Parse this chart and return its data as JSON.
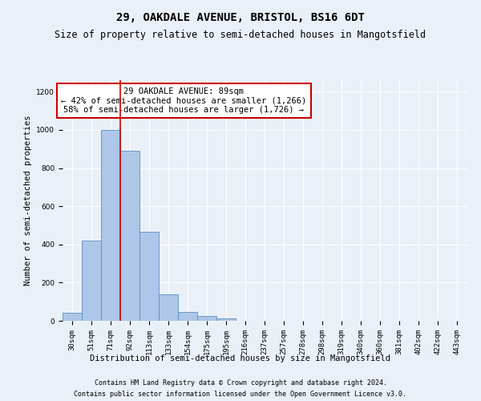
{
  "title": "29, OAKDALE AVENUE, BRISTOL, BS16 6DT",
  "subtitle": "Size of property relative to semi-detached houses in Mangotsfield",
  "xlabel": "Distribution of semi-detached houses by size in Mangotsfield",
  "ylabel": "Number of semi-detached properties",
  "bin_labels": [
    "30sqm",
    "51sqm",
    "71sqm",
    "92sqm",
    "113sqm",
    "133sqm",
    "154sqm",
    "175sqm",
    "195sqm",
    "216sqm",
    "237sqm",
    "257sqm",
    "278sqm",
    "298sqm",
    "319sqm",
    "340sqm",
    "360sqm",
    "381sqm",
    "402sqm",
    "422sqm",
    "443sqm"
  ],
  "bar_heights": [
    40,
    420,
    1000,
    890,
    465,
    140,
    45,
    25,
    12,
    0,
    0,
    0,
    0,
    0,
    0,
    0,
    0,
    0,
    0,
    0,
    0
  ],
  "bar_color": "#aec6e8",
  "bar_edge_color": "#5a8fc0",
  "red_line_x": 3.0,
  "annotation_text": "29 OAKDALE AVENUE: 89sqm\n← 42% of semi-detached houses are smaller (1,266)\n58% of semi-detached houses are larger (1,726) →",
  "annotation_box_color": "#ffffff",
  "annotation_box_edge_color": "#cc0000",
  "ylim": [
    0,
    1260
  ],
  "footnote1": "Contains HM Land Registry data © Crown copyright and database right 2024.",
  "footnote2": "Contains public sector information licensed under the Open Government Licence v3.0.",
  "background_color": "#eaf0f8",
  "grid_color": "#ffffff",
  "title_fontsize": 10,
  "subtitle_fontsize": 8.5,
  "axis_label_fontsize": 7.5,
  "tick_fontsize": 6.5,
  "annotation_fontsize": 7.5,
  "footnote_fontsize": 6.0
}
